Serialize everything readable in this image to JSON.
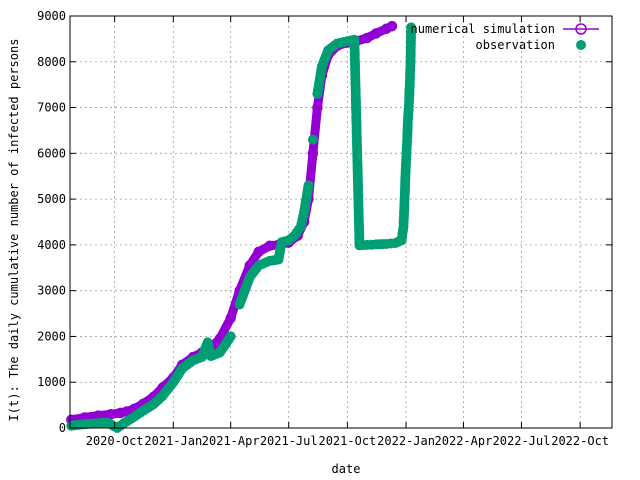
{
  "chart_data": {
    "type": "scatter",
    "xlabel": "date",
    "ylabel": "I(t): The daily cumulative number of infected persons",
    "x_type": "date",
    "xlim": [
      "2020-07-23",
      "2022-11-20"
    ],
    "ylim": [
      0,
      9000
    ],
    "x_ticks": [
      "2020-10-01",
      "2021-01-01",
      "2021-04-01",
      "2021-07-01",
      "2021-10-01",
      "2022-01-01",
      "2022-04-01",
      "2022-07-01",
      "2022-10-01"
    ],
    "x_tick_labels": [
      "2020-Oct",
      "2021-Jan",
      "2021-Apr",
      "2021-Jul",
      "2021-Oct",
      "2022-Jan",
      "2022-Apr",
      "2022-Jul",
      "2022-Oct"
    ],
    "y_ticks": [
      0,
      1000,
      2000,
      3000,
      4000,
      5000,
      6000,
      7000,
      8000,
      9000
    ],
    "y_tick_labels": [
      "0",
      "1000",
      "2000",
      "3000",
      "4000",
      "5000",
      "6000",
      "7000",
      "8000",
      "9000"
    ],
    "grid": true,
    "legend_position": "top-right",
    "colors": {
      "simulation": "#9400d3",
      "observation": "#009e73",
      "axis": "#000000",
      "grid": "#a0a0a0"
    },
    "series": [
      {
        "name": "numerical simulation",
        "style": "linespoints",
        "points": [
          [
            "2020-07-25",
            180
          ],
          [
            "2020-08-15",
            230
          ],
          [
            "2020-09-05",
            270
          ],
          [
            "2020-09-25",
            300
          ],
          [
            "2020-10-10",
            330
          ],
          [
            "2020-10-20",
            360
          ],
          [
            "2020-11-01",
            420
          ],
          [
            "2020-11-15",
            530
          ],
          [
            "2020-12-01",
            680
          ],
          [
            "2020-12-15",
            880
          ],
          [
            "2021-01-01",
            1100
          ],
          [
            "2021-01-15",
            1380
          ],
          [
            "2021-02-01",
            1550
          ],
          [
            "2021-02-15",
            1650
          ],
          [
            "2021-03-01",
            1750
          ],
          [
            "2021-03-15",
            1950
          ],
          [
            "2021-04-01",
            2400
          ],
          [
            "2021-04-15",
            3000
          ],
          [
            "2021-05-01",
            3550
          ],
          [
            "2021-05-15",
            3850
          ],
          [
            "2021-06-01",
            3980
          ],
          [
            "2021-06-15",
            4000
          ],
          [
            "2021-07-01",
            4050
          ],
          [
            "2021-07-15",
            4200
          ],
          [
            "2021-07-25",
            4500
          ],
          [
            "2021-08-01",
            5000
          ],
          [
            "2021-08-08",
            6000
          ],
          [
            "2021-08-15",
            7000
          ],
          [
            "2021-08-22",
            7700
          ],
          [
            "2021-09-01",
            8150
          ],
          [
            "2021-09-15",
            8350
          ],
          [
            "2021-10-01",
            8420
          ],
          [
            "2021-10-15",
            8450
          ],
          [
            "2021-11-01",
            8520
          ],
          [
            "2021-11-15",
            8620
          ],
          [
            "2021-12-01",
            8720
          ],
          [
            "2021-12-10",
            8780
          ]
        ]
      },
      {
        "name": "observation",
        "style": "points",
        "points": [
          [
            "2020-07-25",
            50
          ],
          [
            "2020-08-05",
            70
          ],
          [
            "2020-08-20",
            90
          ],
          [
            "2020-09-05",
            105
          ],
          [
            "2020-09-20",
            120
          ],
          [
            "2020-10-05",
            0
          ],
          [
            "2020-10-15",
            100
          ],
          [
            "2020-11-01",
            250
          ],
          [
            "2020-11-15",
            380
          ],
          [
            "2020-12-01",
            520
          ],
          [
            "2020-12-15",
            700
          ],
          [
            "2021-01-01",
            1000
          ],
          [
            "2021-01-15",
            1300
          ],
          [
            "2021-02-01",
            1480
          ],
          [
            "2021-02-15",
            1550
          ],
          [
            "2021-02-24",
            1870
          ],
          [
            "2021-03-01",
            1570
          ],
          [
            "2021-03-15",
            1650
          ],
          [
            "2021-04-01",
            2000
          ],
          [
            "2021-04-15",
            2700
          ],
          [
            "2021-05-01",
            3300
          ],
          [
            "2021-05-15",
            3550
          ],
          [
            "2021-06-01",
            3650
          ],
          [
            "2021-06-15",
            3680
          ],
          [
            "2021-06-20",
            4060
          ],
          [
            "2021-07-01",
            4100
          ],
          [
            "2021-07-10",
            4200
          ],
          [
            "2021-07-20",
            4400
          ],
          [
            "2021-07-25",
            4700
          ],
          [
            "2021-08-01",
            5300
          ],
          [
            "2021-08-08",
            6300
          ],
          [
            "2021-08-15",
            7300
          ],
          [
            "2021-08-22",
            7900
          ],
          [
            "2021-09-01",
            8250
          ],
          [
            "2021-09-15",
            8400
          ],
          [
            "2021-10-01",
            8450
          ],
          [
            "2021-10-12",
            8480
          ],
          [
            "2021-10-20",
            3990
          ],
          [
            "2021-11-01",
            4000
          ],
          [
            "2021-11-15",
            4010
          ],
          [
            "2021-12-01",
            4020
          ],
          [
            "2021-12-15",
            4040
          ],
          [
            "2021-12-25",
            4100
          ],
          [
            "2021-12-28",
            4400
          ],
          [
            "2021-12-30",
            5100
          ],
          [
            "2021-12-31",
            5500
          ],
          [
            "2022-01-01",
            5800
          ],
          [
            "2022-01-02",
            6100
          ],
          [
            "2022-01-03",
            6350
          ],
          [
            "2022-01-04",
            6750
          ],
          [
            "2022-01-05",
            6950
          ],
          [
            "2022-01-06",
            7200
          ],
          [
            "2022-01-07",
            7600
          ],
          [
            "2022-01-08",
            7980
          ],
          [
            "2022-01-09",
            8750
          ]
        ]
      }
    ]
  }
}
